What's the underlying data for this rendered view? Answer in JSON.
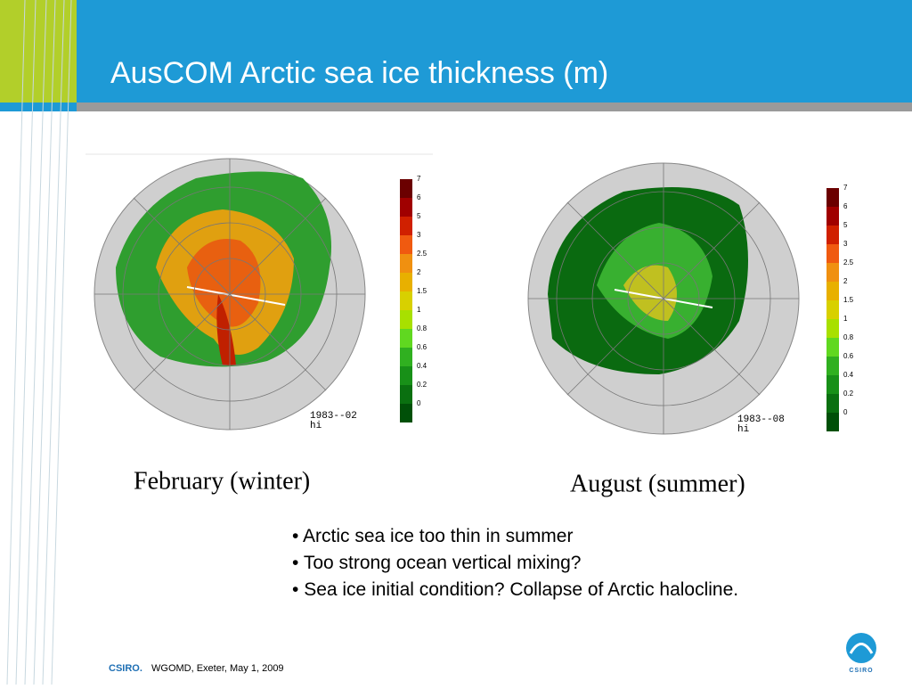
{
  "slide": {
    "title": "AusCOM Arctic sea ice thickness (m)"
  },
  "panels": [
    {
      "stamp": "1983--02",
      "variable": "hi",
      "caption": "February (winter)"
    },
    {
      "stamp": "1983--08",
      "variable": "hi",
      "caption": "August (summer)"
    }
  ],
  "colorbar": {
    "labels": [
      "7",
      "6",
      "5",
      "3",
      "2.5",
      "2",
      "1.5",
      "1",
      "0.8",
      "0.6",
      "0.4",
      "0.2",
      "0"
    ],
    "colors": [
      "#6b0000",
      "#a00000",
      "#d02000",
      "#f05a10",
      "#f09010",
      "#e8b000",
      "#d8d000",
      "#a8e000",
      "#60d820",
      "#30b020",
      "#189018",
      "#0a7010",
      "#005008"
    ]
  },
  "bullets": [
    "Arctic sea ice too thin in summer",
    "Too strong ocean vertical mixing?",
    "Sea ice initial condition? Collapse of Arctic halocline."
  ],
  "footer": {
    "brand": "CSIRO.",
    "text": "WGOMD, Exeter, May 1, 2009",
    "logo": "CSIRO"
  }
}
